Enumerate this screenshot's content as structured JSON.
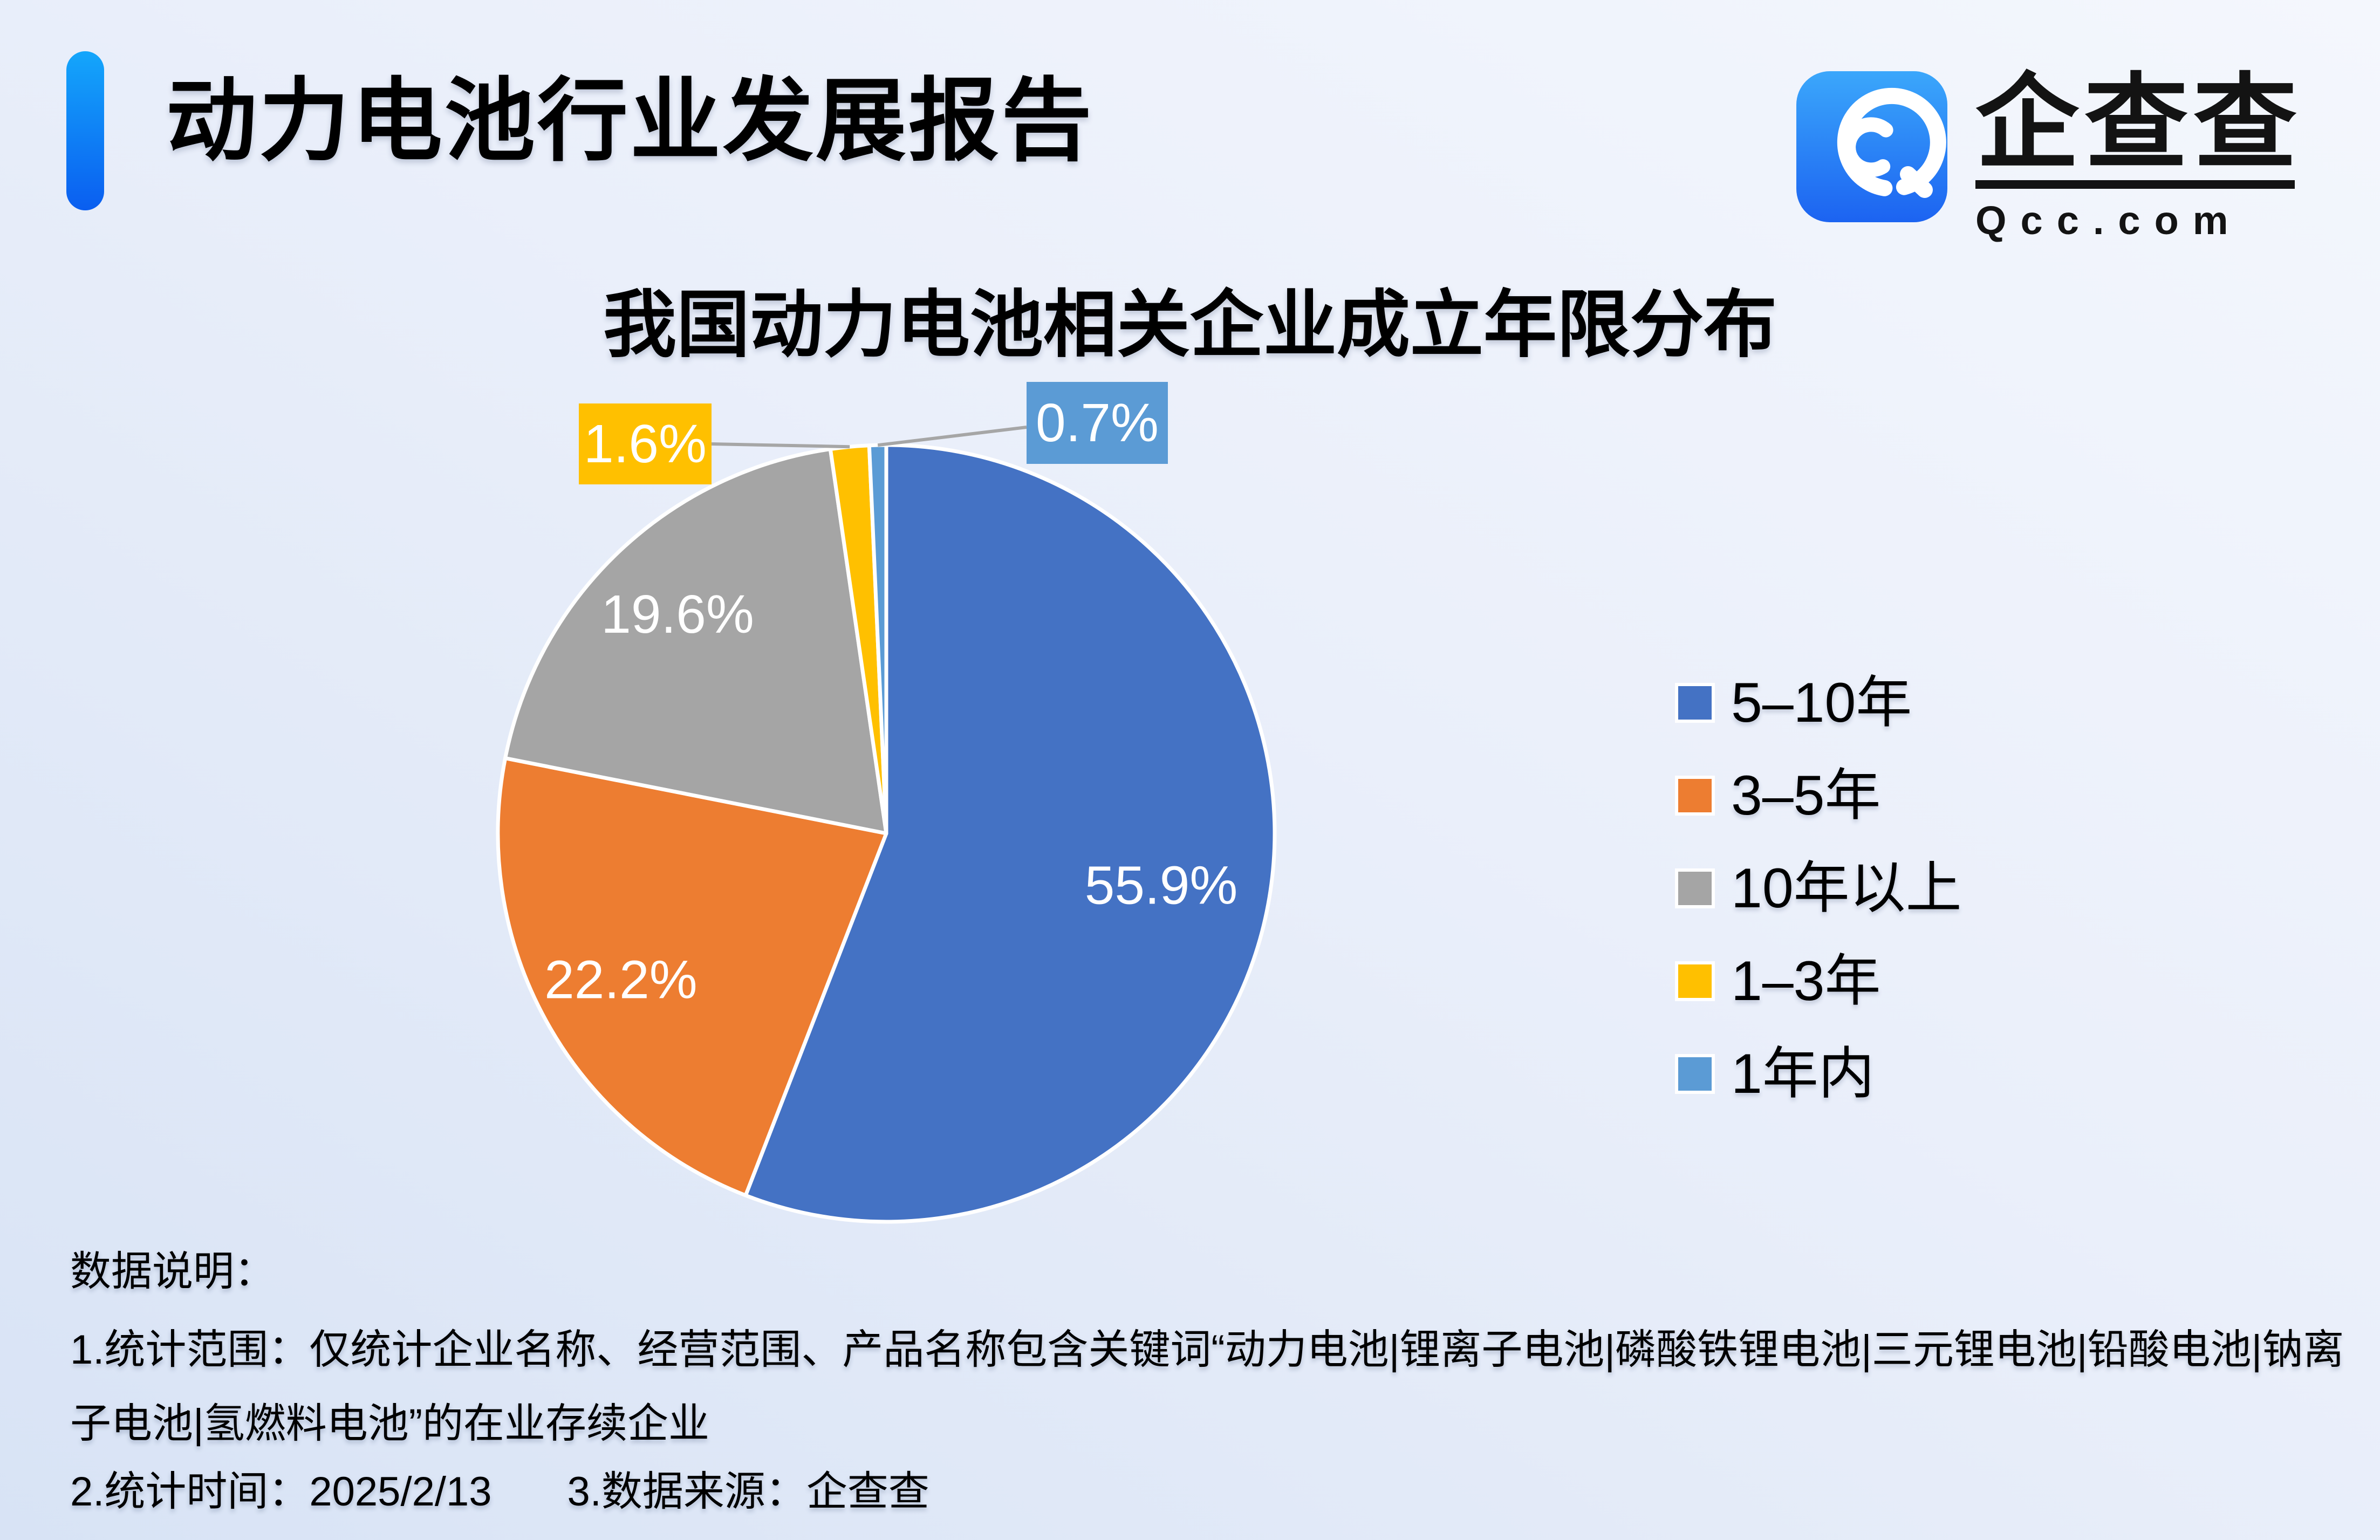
{
  "header": {
    "title": "动力电池行业发展报告",
    "accent_gradient": [
      "#14A6FB",
      "#0A5EF0"
    ]
  },
  "logo": {
    "name": "企查查",
    "domain": "Qcc.com",
    "icon": "qcc-spiral-q-icon",
    "icon_gradient": [
      "#3BA7FB",
      "#1C63F1"
    ]
  },
  "chart_data": {
    "type": "pie",
    "title": "我国动力电池相关企业成立年限分布",
    "legend_position": "right",
    "start_angle_deg": 0,
    "direction": "clockwise",
    "label_color": "#FFFFFF",
    "leader_line_color": "#A6A6A6",
    "slice_border_color": "#FFFFFF",
    "slices": [
      {
        "label": "5–10年",
        "value": 55.9,
        "display": "55.9%",
        "color": "#4472C4",
        "label_placement": "inside"
      },
      {
        "label": "3–5年",
        "value": 22.2,
        "display": "22.2%",
        "color": "#ED7D31",
        "label_placement": "inside"
      },
      {
        "label": "10年以上",
        "value": 19.6,
        "display": "19.6%",
        "color": "#A5A5A5",
        "label_placement": "inside"
      },
      {
        "label": "1–3年",
        "value": 1.6,
        "display": "1.6%",
        "color": "#FFC000",
        "label_placement": "callout"
      },
      {
        "label": "1年内",
        "value": 0.7,
        "display": "0.7%",
        "color": "#5B9BD5",
        "label_placement": "callout"
      }
    ]
  },
  "footer": {
    "heading": "数据说明：",
    "note1_lines": [
      "1.统计范围：仅统计企业名称、经营范围、产品名称包含关键词“动力电池|锂离子电池|磷酸铁锂电池|三元锂电池|铅酸电池|钠离",
      "子电池|氢燃料电池”的在业存续企业"
    ],
    "note2": "2.统计时间：2025/2/13",
    "note3": "3.数据来源：企查查"
  }
}
